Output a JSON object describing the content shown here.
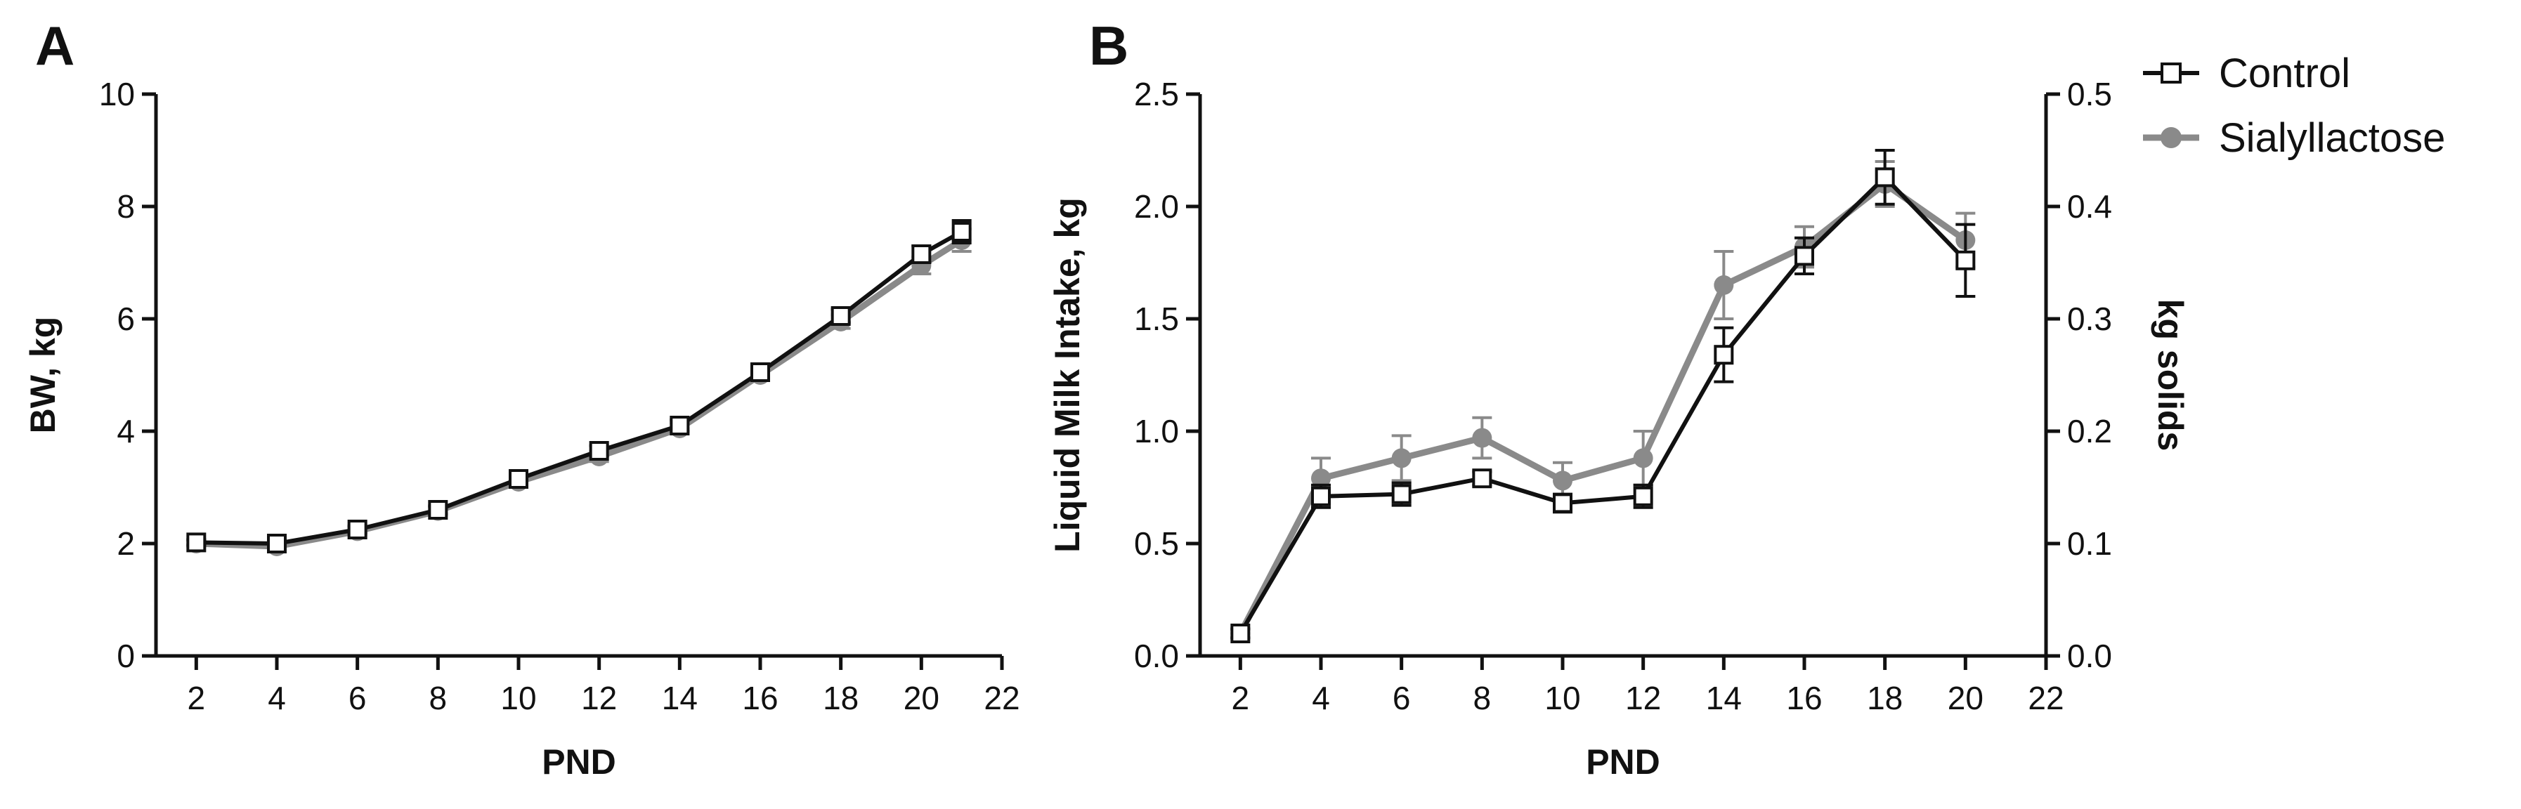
{
  "colors": {
    "control": "#111111",
    "sialyllactose": "#8a8a8a"
  },
  "legend": {
    "items": [
      "Control",
      "Sialyllactose"
    ]
  },
  "chart_data": [
    {
      "panel": "A",
      "type": "line",
      "title": "",
      "xlabel": "PND",
      "ylabel": "BW, kg",
      "xlim": [
        1,
        22
      ],
      "ylim": [
        0,
        10
      ],
      "xticks": [
        2,
        4,
        6,
        8,
        10,
        12,
        14,
        16,
        18,
        20,
        22
      ],
      "yticks": [
        0,
        2,
        4,
        6,
        8,
        10
      ],
      "series": [
        {
          "name": "Control",
          "marker": "square-open",
          "x": [
            2,
            4,
            6,
            8,
            10,
            12,
            14,
            16,
            18,
            20,
            21
          ],
          "y": [
            2.02,
            2.0,
            2.25,
            2.6,
            3.15,
            3.65,
            4.1,
            5.05,
            6.05,
            7.15,
            7.55
          ],
          "err": [
            0.05,
            0.05,
            0.06,
            0.07,
            0.08,
            0.09,
            0.1,
            0.1,
            0.12,
            0.15,
            0.2
          ]
        },
        {
          "name": "Sialyllactose",
          "marker": "circle",
          "x": [
            2,
            4,
            6,
            8,
            10,
            12,
            14,
            16,
            18,
            20,
            21
          ],
          "y": [
            2.0,
            1.95,
            2.22,
            2.58,
            3.1,
            3.55,
            4.05,
            5.0,
            5.95,
            6.95,
            7.4
          ],
          "err": [
            0.05,
            0.05,
            0.06,
            0.07,
            0.08,
            0.09,
            0.1,
            0.1,
            0.12,
            0.15,
            0.2
          ]
        }
      ]
    },
    {
      "panel": "B",
      "type": "line",
      "title": "",
      "xlabel": "PND",
      "ylabel": "Liquid Milk Intake, kg",
      "ylabel_right": "kg solids",
      "xlim": [
        1,
        22
      ],
      "ylim": [
        0,
        2.5
      ],
      "ylim_right": [
        0,
        0.5
      ],
      "xticks": [
        2,
        4,
        6,
        8,
        10,
        12,
        14,
        16,
        18,
        20,
        22
      ],
      "yticks": [
        "0.0",
        "0.5",
        "1.0",
        "1.5",
        "2.0",
        "2.5"
      ],
      "yticks_right": [
        "0.0",
        "0.1",
        "0.2",
        "0.3",
        "0.4",
        "0.5"
      ],
      "series": [
        {
          "name": "Control",
          "marker": "square-open",
          "x": [
            2,
            4,
            6,
            8,
            10,
            12,
            14,
            16,
            18,
            20
          ],
          "y": [
            0.1,
            0.71,
            0.72,
            0.79,
            0.68,
            0.71,
            1.34,
            1.78,
            2.13,
            1.76
          ],
          "err": [
            0.02,
            0.05,
            0.05,
            0.03,
            0.04,
            0.05,
            0.12,
            0.08,
            0.12,
            0.16
          ]
        },
        {
          "name": "Sialyllactose",
          "marker": "circle",
          "x": [
            2,
            4,
            6,
            8,
            10,
            12,
            14,
            16,
            18,
            20
          ],
          "y": [
            0.1,
            0.79,
            0.88,
            0.97,
            0.78,
            0.88,
            1.65,
            1.82,
            2.1,
            1.85
          ],
          "err": [
            0.02,
            0.09,
            0.1,
            0.09,
            0.08,
            0.12,
            0.15,
            0.09,
            0.1,
            0.12
          ]
        }
      ]
    }
  ]
}
